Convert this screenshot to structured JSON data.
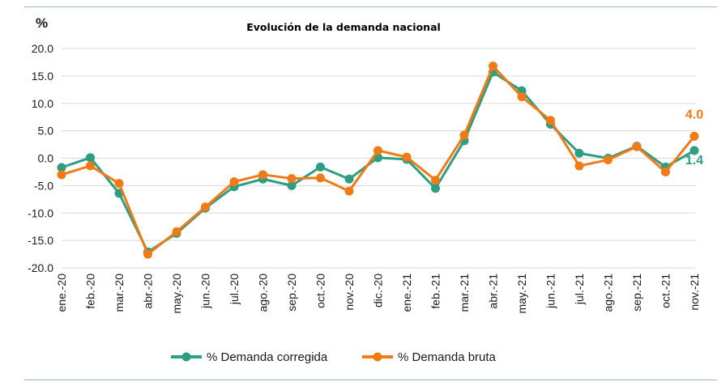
{
  "chart_data": {
    "type": "line",
    "title": "Evolución de la demanda nacional",
    "ylabel": "%",
    "ylim": [
      -20,
      20
    ],
    "yticks": [
      "20.0",
      "15.0",
      "10.0",
      "5.0",
      "0.0",
      "-5.0",
      "-10.0",
      "-15.0",
      "-20.0"
    ],
    "grid": true,
    "legend_position": "bottom",
    "categories": [
      "ene.-20",
      "feb.-20",
      "mar.-20",
      "abr.-20",
      "may.-20",
      "jun.-20",
      "jul.-20",
      "ago.-20",
      "sep.-20",
      "oct.-20",
      "nov.-20",
      "dic.-20",
      "ene.-21",
      "feb.-21",
      "mar.-21",
      "abr.-21",
      "may.-21",
      "jun.-21",
      "jul.-21",
      "ago.-21",
      "sep.-21",
      "oct.-21",
      "nov.-21"
    ],
    "series": [
      {
        "name": "% Demanda corregida",
        "color": "#2e9e82",
        "values": [
          -1.7,
          0.1,
          -6.4,
          -17.1,
          -13.7,
          -9.1,
          -5.2,
          -3.8,
          -5.0,
          -1.6,
          -3.8,
          0.1,
          -0.2,
          -5.5,
          3.2,
          15.7,
          12.3,
          6.2,
          0.9,
          0.0,
          2.2,
          -1.6,
          1.4
        ]
      },
      {
        "name": "% Demanda bruta",
        "color": "#f07b16",
        "values": [
          -3.0,
          -1.4,
          -4.6,
          -17.5,
          -13.4,
          -8.9,
          -4.3,
          -3.0,
          -3.7,
          -3.6,
          -6.0,
          1.4,
          0.2,
          -4.0,
          4.2,
          16.8,
          11.2,
          6.9,
          -1.4,
          -0.3,
          2.1,
          -2.5,
          4.0
        ]
      }
    ],
    "annotations": [
      {
        "text": "4.0",
        "series": 1,
        "index": 22,
        "color": "#f07b16"
      },
      {
        "text": "1.4",
        "series": 0,
        "index": 22,
        "color": "#2e9e82"
      }
    ]
  }
}
